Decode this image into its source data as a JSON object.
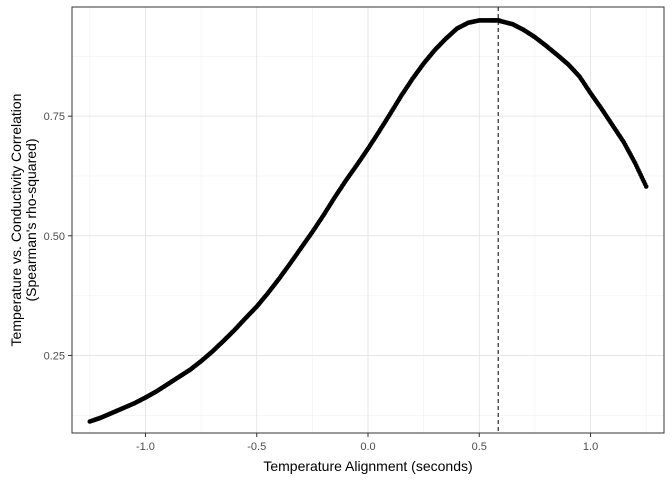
{
  "chart_data": {
    "type": "scatter",
    "xlabel": "Temperature Alignment (seconds)",
    "ylabel_lines": [
      "Temperature vs. Conductivity Correlation",
      "(Spearman's rho-squared)"
    ],
    "xlim": [
      -1.33,
      1.33
    ],
    "ylim": [
      0.088,
      0.978
    ],
    "x_ticks": [
      -1.0,
      -0.5,
      0.0,
      0.5,
      1.0
    ],
    "x_tick_labels": [
      "-1.0",
      "-0.5",
      "0.0",
      "0.5",
      "1.0"
    ],
    "y_ticks": [
      0.25,
      0.5,
      0.75
    ],
    "y_tick_labels": [
      "0.25",
      "0.50",
      "0.75"
    ],
    "vline_x": 0.585,
    "grid": true,
    "point_color": "#000000",
    "series": [
      {
        "x": [
          -1.25,
          -1.2,
          -1.15,
          -1.1,
          -1.05,
          -1.0,
          -0.95,
          -0.9,
          -0.85,
          -0.8,
          -0.75,
          -0.7,
          -0.65,
          -0.6,
          -0.55,
          -0.5,
          -0.45,
          -0.4,
          -0.35,
          -0.3,
          -0.25,
          -0.2,
          -0.15,
          -0.1,
          -0.05,
          0.0,
          0.05,
          0.1,
          0.15,
          0.2,
          0.25,
          0.3,
          0.35,
          0.4,
          0.45,
          0.5,
          0.55,
          0.585,
          0.6,
          0.65,
          0.7,
          0.75,
          0.8,
          0.85,
          0.9,
          0.95,
          1.0,
          1.05,
          1.1,
          1.15,
          1.2,
          1.25
        ],
        "y": [
          0.112,
          0.12,
          0.13,
          0.14,
          0.15,
          0.162,
          0.175,
          0.19,
          0.205,
          0.22,
          0.238,
          0.258,
          0.28,
          0.303,
          0.328,
          0.352,
          0.38,
          0.41,
          0.442,
          0.475,
          0.508,
          0.543,
          0.58,
          0.615,
          0.648,
          0.682,
          0.718,
          0.755,
          0.793,
          0.828,
          0.86,
          0.888,
          0.912,
          0.933,
          0.945,
          0.95,
          0.95,
          0.95,
          0.948,
          0.942,
          0.93,
          0.915,
          0.897,
          0.878,
          0.858,
          0.833,
          0.798,
          0.765,
          0.73,
          0.695,
          0.652,
          0.603
        ]
      }
    ]
  }
}
